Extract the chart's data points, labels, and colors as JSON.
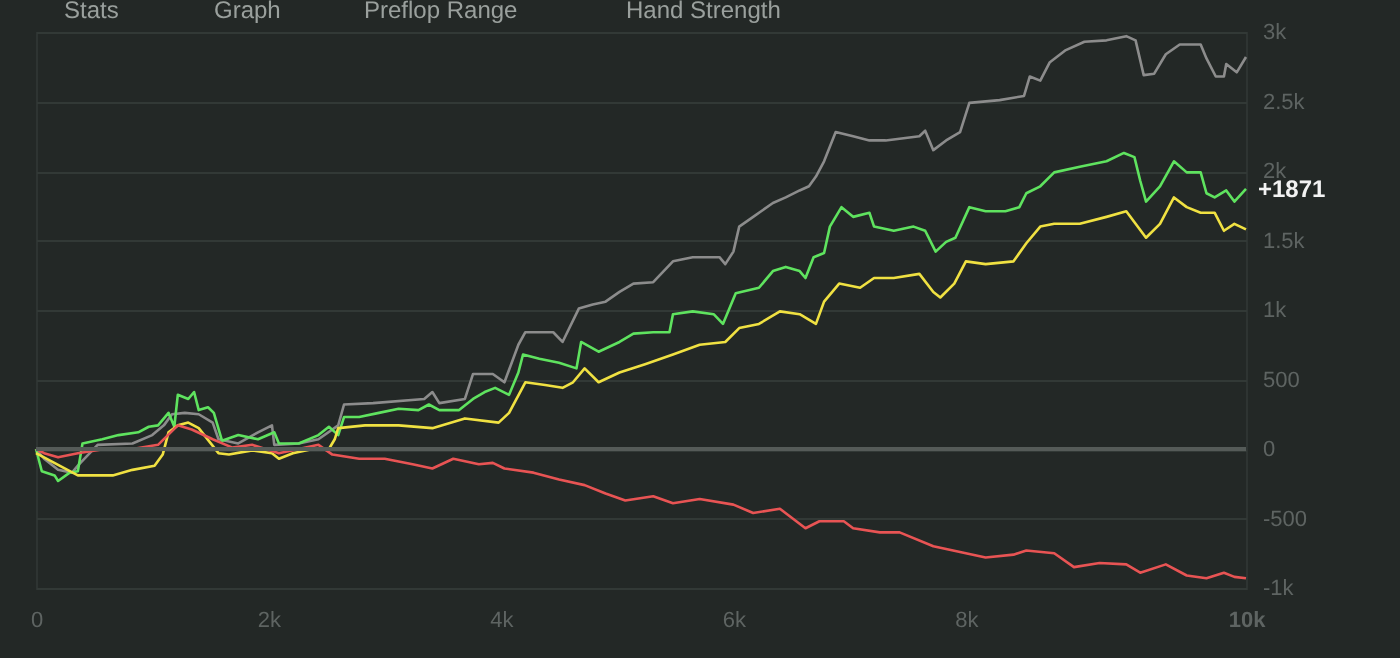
{
  "chart_data": {
    "type": "line",
    "annotations": [
      "Stats",
      "Graph",
      "Preflop Range",
      "Hand Strength",
      {
        "text": "+1871",
        "x": 10410,
        "y": 1871
      }
    ],
    "xlim": [
      0,
      10410
    ],
    "xticks": [
      0,
      {
        "value": 2000,
        "label": "2k"
      },
      {
        "value": 4000,
        "label": "4k"
      },
      {
        "value": 6000,
        "label": "6k"
      },
      {
        "value": 8000,
        "label": "8k"
      },
      {
        "value": 10410,
        "label": "10k"
      }
    ],
    "ylim": [
      -1000,
      3000
    ],
    "yticks": [
      {
        "value": -1000,
        "label": "-1k"
      },
      -500,
      0,
      500,
      {
        "value": 1000,
        "label": "1k"
      },
      {
        "value": 1500,
        "label": "1.5k"
      },
      {
        "value": 2000,
        "label": "2k"
      },
      {
        "value": 2500,
        "label": "2.5k"
      },
      {
        "value": 3000,
        "label": "3k"
      }
    ],
    "grid": "y",
    "line_style": "solid",
    "ref_lines": [
      {
        "axis": "y",
        "value": 0,
        "color": "#555b58"
      }
    ],
    "series": [
      {
        "color": "#8c8c8c",
        "x": [
          0,
          70,
          190,
          310,
          360,
          530,
          830,
          1000,
          1100,
          1170,
          1280,
          1400,
          1520,
          1570,
          1740,
          1910,
          2030,
          2050,
          2260,
          2430,
          2600,
          2650,
          2900,
          3340,
          3410,
          3470,
          3690,
          3760,
          3930,
          4030,
          4150,
          4210,
          4450,
          4530,
          4670,
          4790,
          4900,
          5020,
          5140,
          5310,
          5480,
          5650,
          5880,
          5930,
          6000,
          6050,
          6170,
          6340,
          6450,
          6570,
          6650,
          6710,
          6780,
          6880,
          7030,
          7170,
          7310,
          7600,
          7650,
          7720,
          7830,
          7950,
          8030,
          8290,
          8500,
          8550,
          8640,
          8720,
          8860,
          9020,
          9210,
          9380,
          9460,
          9530,
          9620,
          9720,
          9840,
          10020,
          10070,
          10150,
          10220,
          10240,
          10330,
          10410
        ],
        "values": [
          0,
          -70,
          -150,
          -170,
          -120,
          30,
          40,
          100,
          170,
          250,
          260,
          250,
          190,
          70,
          40,
          120,
          170,
          30,
          40,
          70,
          170,
          320,
          330,
          360,
          410,
          330,
          360,
          540,
          540,
          480,
          750,
          840,
          840,
          770,
          1010,
          1040,
          1060,
          1130,
          1190,
          1200,
          1350,
          1380,
          1380,
          1330,
          1420,
          1600,
          1670,
          1770,
          1810,
          1860,
          1890,
          1960,
          2070,
          2280,
          2250,
          2220,
          2220,
          2250,
          2290,
          2150,
          2220,
          2280,
          2490,
          2510,
          2540,
          2680,
          2650,
          2780,
          2870,
          2930,
          2940,
          2970,
          2940,
          2690,
          2700,
          2840,
          2910,
          2910,
          2810,
          2680,
          2680,
          2770,
          2710,
          2820
        ]
      },
      {
        "color": "#5fe35f",
        "x": [
          0,
          50,
          160,
          190,
          290,
          360,
          400,
          570,
          710,
          880,
          970,
          1050,
          1140,
          1190,
          1220,
          1310,
          1360,
          1400,
          1480,
          1530,
          1600,
          1740,
          1910,
          2050,
          2090,
          2260,
          2430,
          2520,
          2600,
          2650,
          2780,
          2950,
          3120,
          3290,
          3380,
          3470,
          3640,
          3760,
          3860,
          3950,
          4070,
          4150,
          4190,
          4330,
          4500,
          4650,
          4690,
          4840,
          5020,
          5140,
          5310,
          5450,
          5480,
          5650,
          5830,
          5910,
          6020,
          6220,
          6340,
          6450,
          6570,
          6620,
          6690,
          6780,
          6830,
          6930,
          7030,
          7170,
          7210,
          7380,
          7550,
          7650,
          7740,
          7830,
          7910,
          8030,
          8170,
          8340,
          8460,
          8520,
          8640,
          8760,
          8980,
          9210,
          9360,
          9450,
          9500,
          9550,
          9670,
          9790,
          9900,
          10020,
          10070,
          10140,
          10240,
          10310,
          10410
        ],
        "values": [
          0,
          -160,
          -190,
          -230,
          -170,
          -160,
          40,
          70,
          100,
          120,
          160,
          170,
          260,
          160,
          390,
          360,
          410,
          280,
          300,
          260,
          60,
          100,
          70,
          120,
          40,
          40,
          100,
          160,
          100,
          230,
          230,
          260,
          290,
          280,
          320,
          280,
          280,
          360,
          410,
          440,
          390,
          550,
          680,
          650,
          620,
          580,
          770,
          700,
          770,
          830,
          840,
          840,
          970,
          990,
          970,
          900,
          1120,
          1160,
          1280,
          1310,
          1280,
          1230,
          1380,
          1410,
          1600,
          1740,
          1670,
          1700,
          1600,
          1570,
          1600,
          1570,
          1420,
          1490,
          1520,
          1740,
          1710,
          1710,
          1740,
          1840,
          1890,
          1990,
          2030,
          2070,
          2130,
          2100,
          1930,
          1780,
          1890,
          2070,
          1990,
          1990,
          1840,
          1810,
          1860,
          1780,
          1871
        ]
      },
      {
        "color": "#f0e142",
        "x": [
          0,
          360,
          660,
          830,
          1020,
          1090,
          1140,
          1220,
          1310,
          1400,
          1570,
          1660,
          1860,
          2030,
          2090,
          2210,
          2380,
          2520,
          2570,
          2600,
          2830,
          3120,
          3410,
          3690,
          3980,
          4070,
          4210,
          4380,
          4530,
          4620,
          4720,
          4840,
          5020,
          5240,
          5480,
          5710,
          5930,
          6050,
          6220,
          6400,
          6570,
          6710,
          6780,
          6910,
          7090,
          7210,
          7380,
          7600,
          7720,
          7780,
          7900,
          8000,
          8170,
          8410,
          8520,
          8640,
          8760,
          8980,
          9210,
          9380,
          9550,
          9670,
          9790,
          9900,
          10020,
          10140,
          10220,
          10310,
          10410
        ],
        "values": [
          -30,
          -190,
          -190,
          -150,
          -120,
          -40,
          120,
          170,
          190,
          150,
          -30,
          -40,
          -10,
          -30,
          -70,
          -30,
          0,
          0,
          70,
          150,
          170,
          170,
          150,
          220,
          190,
          260,
          480,
          460,
          440,
          480,
          580,
          480,
          550,
          610,
          680,
          750,
          770,
          870,
          900,
          990,
          970,
          900,
          1060,
          1190,
          1160,
          1230,
          1230,
          1260,
          1130,
          1090,
          1190,
          1350,
          1330,
          1350,
          1480,
          1600,
          1620,
          1620,
          1670,
          1710,
          1520,
          1620,
          1810,
          1740,
          1700,
          1700,
          1570,
          1620,
          1580
        ]
      },
      {
        "color": "#e85454",
        "x": [
          0,
          70,
          190,
          360,
          590,
          830,
          1050,
          1220,
          1340,
          1520,
          1690,
          1860,
          2090,
          2260,
          2430,
          2550,
          2780,
          3000,
          3240,
          3410,
          3590,
          3810,
          3930,
          4030,
          4280,
          4500,
          4720,
          4900,
          5070,
          5310,
          5480,
          5710,
          6000,
          6170,
          6400,
          6620,
          6740,
          6950,
          7030,
          7260,
          7430,
          7720,
          8000,
          8170,
          8410,
          8520,
          8760,
          8930,
          9150,
          9380,
          9500,
          9720,
          9900,
          10070,
          10220,
          10310,
          10410
        ],
        "values": [
          0,
          -30,
          -60,
          -30,
          0,
          0,
          30,
          170,
          140,
          70,
          10,
          30,
          -30,
          0,
          30,
          -40,
          -70,
          -70,
          -110,
          -140,
          -70,
          -110,
          -100,
          -140,
          -170,
          -220,
          -260,
          -320,
          -370,
          -340,
          -390,
          -360,
          -400,
          -460,
          -430,
          -570,
          -520,
          -520,
          -570,
          -600,
          -600,
          -700,
          -750,
          -780,
          -760,
          -730,
          -750,
          -850,
          -820,
          -830,
          -890,
          -830,
          -910,
          -930,
          -890,
          -920,
          -930
        ]
      }
    ]
  }
}
